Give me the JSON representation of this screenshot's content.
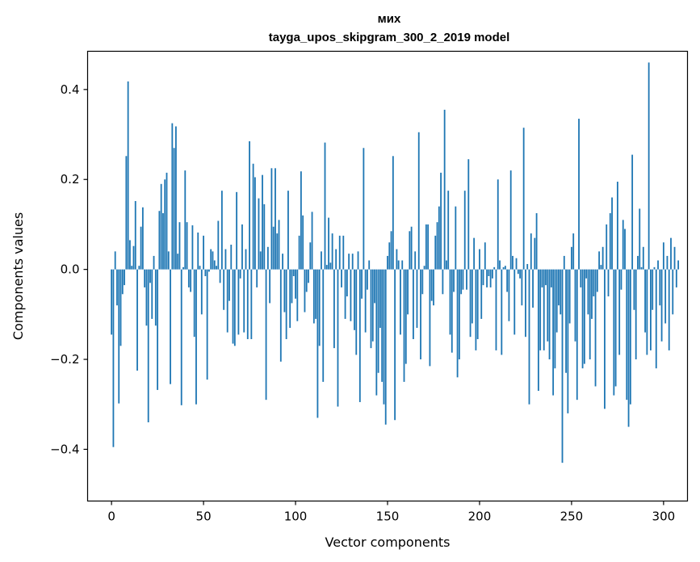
{
  "chart_data": {
    "type": "bar",
    "title": "мих",
    "subtitle": "tayga_upos_skipgram_300_2_2019 model",
    "xlabel": "Vector components",
    "ylabel": "Components values",
    "xlim": [
      -13,
      313
    ],
    "ylim": [
      -0.515,
      0.485
    ],
    "xticks": [
      0,
      50,
      100,
      150,
      200,
      250,
      300
    ],
    "xtick_labels": [
      "0",
      "50",
      "100",
      "150",
      "200",
      "250",
      "300"
    ],
    "yticks": [
      -0.4,
      -0.2,
      0.0,
      0.2,
      0.4
    ],
    "ytick_labels": [
      "−0.4",
      "−0.2",
      "0.0",
      "0.2",
      "0.4"
    ],
    "bar_color": "#1f77b4",
    "values": [
      -0.145,
      -0.395,
      0.04,
      -0.08,
      -0.298,
      -0.17,
      -0.055,
      -0.035,
      0.252,
      0.418,
      0.065,
      0.008,
      0.052,
      0.152,
      -0.225,
      0.008,
      0.095,
      0.138,
      -0.04,
      -0.125,
      -0.34,
      -0.03,
      -0.11,
      0.03,
      -0.125,
      -0.268,
      0.13,
      0.19,
      0.125,
      0.2,
      0.215,
      0.04,
      -0.255,
      0.325,
      0.27,
      0.318,
      0.035,
      0.105,
      -0.302,
      0.005,
      0.22,
      0.105,
      -0.04,
      -0.05,
      0.098,
      -0.15,
      -0.3,
      0.082,
      0.008,
      -0.1,
      0.075,
      -0.015,
      -0.245,
      -0.005,
      0.045,
      0.04,
      0.02,
      0.008,
      0.108,
      -0.03,
      0.175,
      -0.09,
      0.045,
      -0.14,
      -0.07,
      0.055,
      -0.165,
      -0.17,
      0.172,
      -0.145,
      -0.02,
      0.1,
      -0.14,
      0.045,
      -0.155,
      0.285,
      -0.155,
      0.235,
      0.205,
      -0.04,
      0.158,
      0.04,
      0.21,
      0.145,
      -0.29,
      0.05,
      -0.075,
      0.225,
      0.095,
      0.225,
      0.08,
      0.11,
      -0.205,
      0.035,
      -0.095,
      -0.155,
      0.175,
      -0.13,
      -0.075,
      -0.015,
      -0.065,
      -0.115,
      0.075,
      0.218,
      0.12,
      -0.095,
      -0.05,
      -0.03,
      0.06,
      0.128,
      -0.12,
      -0.11,
      -0.33,
      -0.17,
      0.04,
      -0.25,
      0.282,
      0.01,
      0.115,
      0.015,
      0.08,
      -0.175,
      0.045,
      -0.305,
      0.075,
      -0.04,
      0.075,
      -0.11,
      -0.06,
      0.035,
      -0.115,
      0.035,
      -0.135,
      -0.19,
      0.04,
      -0.295,
      -0.065,
      0.27,
      -0.14,
      -0.045,
      0.02,
      -0.175,
      -0.16,
      -0.075,
      -0.28,
      -0.23,
      -0.13,
      -0.25,
      -0.3,
      -0.345,
      0.03,
      0.06,
      0.085,
      0.252,
      -0.335,
      0.045,
      0.02,
      -0.145,
      0.02,
      -0.25,
      -0.21,
      -0.1,
      0.085,
      0.095,
      -0.155,
      0.04,
      -0.13,
      0.305,
      -0.2,
      -0.055,
      0.008,
      0.1,
      0.1,
      -0.215,
      -0.07,
      -0.08,
      0.075,
      0.105,
      0.14,
      0.215,
      -0.055,
      0.355,
      0.02,
      0.175,
      -0.145,
      -0.185,
      -0.05,
      0.14,
      -0.24,
      -0.2,
      -0.055,
      -0.045,
      0.175,
      -0.045,
      0.245,
      -0.15,
      -0.12,
      0.07,
      -0.18,
      -0.155,
      0.045,
      -0.11,
      -0.035,
      0.06,
      -0.04,
      -0.015,
      -0.04,
      -0.02,
      0.005,
      -0.18,
      0.2,
      0.02,
      -0.19,
      0.005,
      0.008,
      -0.05,
      -0.115,
      0.22,
      0.03,
      -0.145,
      0.025,
      -0.01,
      -0.02,
      -0.08,
      0.315,
      -0.15,
      0.012,
      -0.3,
      0.08,
      -0.085,
      0.07,
      0.125,
      -0.27,
      -0.18,
      -0.04,
      -0.18,
      -0.035,
      -0.16,
      -0.2,
      -0.04,
      -0.28,
      -0.22,
      -0.14,
      -0.08,
      -0.1,
      -0.43,
      0.03,
      -0.23,
      -0.32,
      -0.12,
      0.05,
      0.08,
      -0.16,
      -0.29,
      0.335,
      -0.04,
      -0.22,
      -0.21,
      -0.02,
      -0.1,
      -0.2,
      -0.11,
      -0.06,
      -0.26,
      -0.05,
      0.04,
      0.01,
      0.05,
      -0.31,
      0.1,
      -0.06,
      0.125,
      0.16,
      -0.28,
      -0.26,
      0.195,
      -0.19,
      -0.045,
      0.11,
      0.09,
      -0.29,
      -0.35,
      -0.3,
      0.255,
      -0.09,
      -0.2,
      0.03,
      0.135,
      0.005,
      0.05,
      -0.14,
      -0.19,
      0.46,
      -0.18,
      -0.09,
      0.005,
      -0.22,
      0.02,
      -0.08,
      -0.16,
      0.06,
      -0.12,
      0.03,
      -0.18,
      0.07,
      -0.1,
      0.05,
      -0.04,
      0.02
    ]
  }
}
